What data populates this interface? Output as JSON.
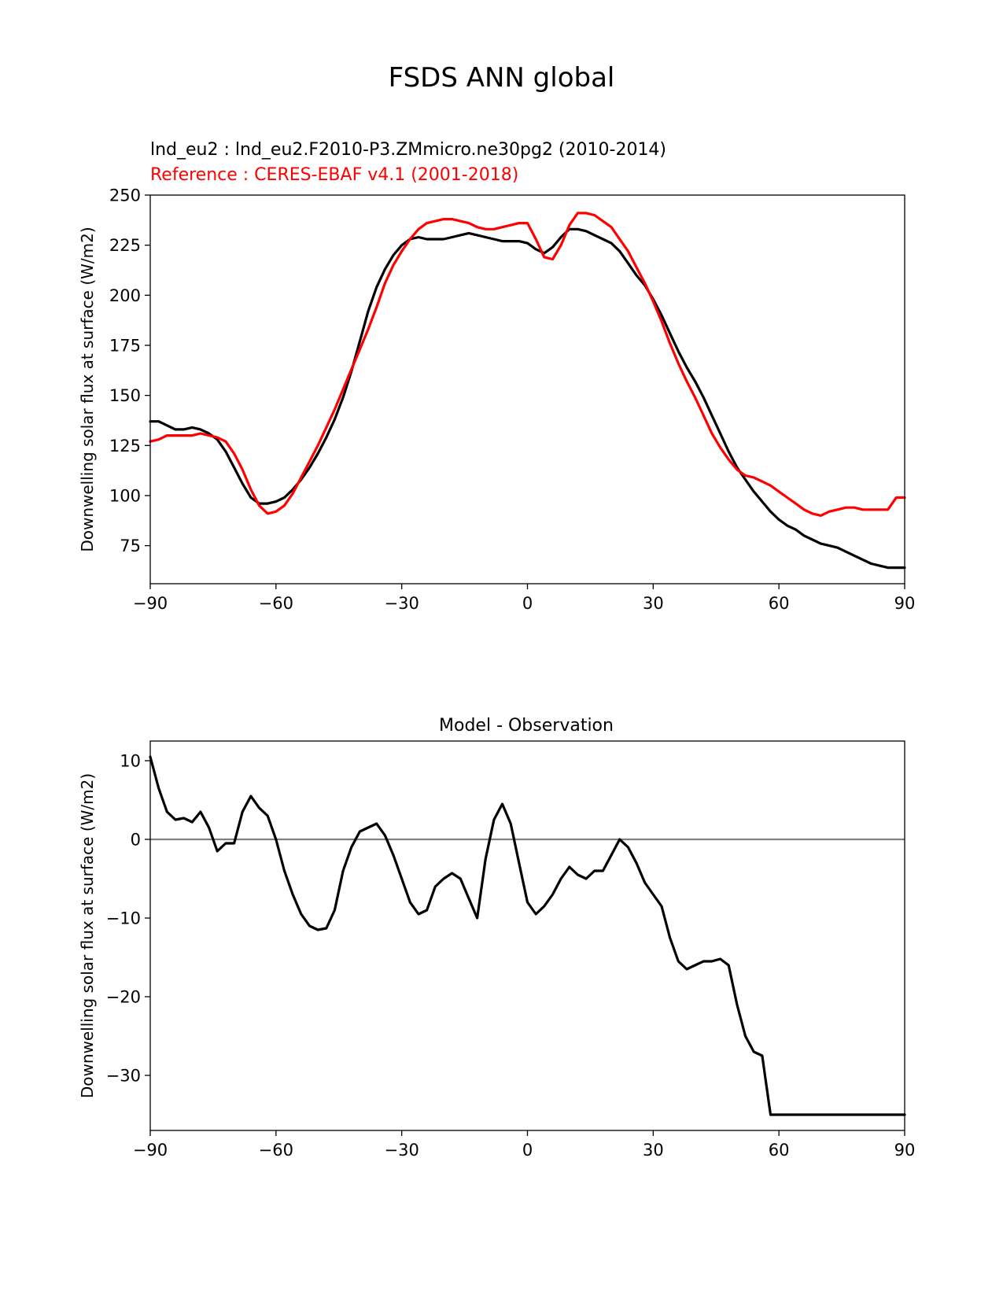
{
  "figure_title": "FSDS ANN global",
  "chart_data": [
    {
      "type": "line",
      "title": "",
      "legend": {
        "test": "lnd_eu2 : lnd_eu2.F2010-P3.ZMmicro.ne30pg2 (2010-2014)",
        "ref": "Reference : CERES-EBAF v4.1 (2001-2018)"
      },
      "xlabel": "",
      "ylabel": "Downwelling solar flux at surface (W/m2)",
      "xlim": [
        -90,
        90
      ],
      "ylim": [
        56,
        250
      ],
      "xticks": [
        -90,
        -60,
        -30,
        0,
        30,
        60,
        90
      ],
      "xtick_labels": [
        "−90",
        "−60",
        "−30",
        "0",
        "30",
        "60",
        "90"
      ],
      "yticks": [
        75,
        100,
        125,
        150,
        175,
        200,
        225,
        250
      ],
      "ytick_labels": [
        "75",
        "100",
        "125",
        "150",
        "175",
        "200",
        "225",
        "250"
      ],
      "series": [
        {
          "name": "test",
          "color": "#000000",
          "x": [
            -90,
            -88,
            -86,
            -84,
            -82,
            -80,
            -78,
            -76,
            -74,
            -72,
            -70,
            -68,
            -66,
            -64,
            -62,
            -60,
            -58,
            -56,
            -54,
            -52,
            -50,
            -48,
            -46,
            -44,
            -42,
            -40,
            -38,
            -36,
            -34,
            -32,
            -30,
            -28,
            -26,
            -24,
            -22,
            -20,
            -18,
            -16,
            -14,
            -12,
            -10,
            -8,
            -6,
            -4,
            -2,
            0,
            2,
            4,
            6,
            8,
            10,
            12,
            14,
            16,
            18,
            20,
            22,
            24,
            26,
            28,
            30,
            32,
            34,
            36,
            38,
            40,
            42,
            44,
            46,
            48,
            50,
            52,
            54,
            56,
            58,
            60,
            62,
            64,
            66,
            68,
            70,
            72,
            74,
            76,
            78,
            80,
            82,
            84,
            86,
            88,
            90
          ],
          "values": [
            137,
            137,
            135,
            133,
            133,
            134,
            133,
            131,
            128,
            122,
            114,
            106,
            99,
            96,
            96,
            97,
            99,
            103,
            108,
            114,
            121,
            129,
            138,
            149,
            162,
            177,
            192,
            204,
            213,
            220,
            225,
            228,
            229,
            228,
            228,
            228,
            229,
            230,
            231,
            230,
            229,
            228,
            227,
            227,
            227,
            226,
            223,
            221,
            224,
            229,
            233,
            233,
            232,
            230,
            228,
            226,
            222,
            216,
            210,
            205,
            198,
            190,
            181,
            172,
            164,
            157,
            149,
            140,
            131,
            122,
            114,
            108,
            102,
            97,
            92,
            88,
            85,
            83,
            80,
            78,
            76,
            75,
            74,
            72,
            70,
            68,
            66,
            65,
            64,
            64,
            64
          ]
        },
        {
          "name": "ref",
          "color": "#ff0000",
          "x": [
            -90,
            -88,
            -86,
            -84,
            -82,
            -80,
            -78,
            -76,
            -74,
            -72,
            -70,
            -68,
            -66,
            -64,
            -62,
            -60,
            -58,
            -56,
            -54,
            -52,
            -50,
            -48,
            -46,
            -44,
            -42,
            -40,
            -38,
            -36,
            -34,
            -32,
            -30,
            -28,
            -26,
            -24,
            -22,
            -20,
            -18,
            -16,
            -14,
            -12,
            -10,
            -8,
            -6,
            -4,
            -2,
            0,
            2,
            4,
            6,
            8,
            10,
            12,
            14,
            16,
            18,
            20,
            22,
            24,
            26,
            28,
            30,
            32,
            34,
            36,
            38,
            40,
            42,
            44,
            46,
            48,
            50,
            52,
            54,
            56,
            58,
            60,
            62,
            64,
            66,
            68,
            70,
            72,
            74,
            76,
            78,
            80,
            82,
            84,
            86,
            88,
            90
          ],
          "values": [
            127,
            128,
            130,
            130,
            130,
            130,
            131,
            130,
            129,
            127,
            121,
            113,
            103,
            95,
            91,
            92,
            95,
            101,
            109,
            117,
            125,
            134,
            143,
            153,
            163,
            173,
            183,
            194,
            206,
            215,
            222,
            228,
            233,
            236,
            237,
            238,
            238,
            237,
            236,
            234,
            233,
            233,
            234,
            235,
            236,
            236,
            228,
            219,
            218,
            225,
            235,
            241,
            241,
            240,
            237,
            234,
            228,
            222,
            214,
            206,
            197,
            187,
            176,
            166,
            157,
            149,
            140,
            131,
            124,
            118,
            113,
            110,
            109,
            107,
            105,
            102,
            99,
            96,
            93,
            91,
            90,
            92,
            93,
            94,
            94,
            93,
            93,
            93,
            93,
            99,
            99
          ]
        }
      ]
    },
    {
      "type": "line",
      "title": "Model - Observation",
      "xlabel": "",
      "ylabel": "Downwelling solar flux at surface (W/m2)",
      "xlim": [
        -90,
        90
      ],
      "ylim": [
        -37,
        12.5
      ],
      "xticks": [
        -90,
        -60,
        -30,
        0,
        30,
        60,
        90
      ],
      "xtick_labels": [
        "−90",
        "−60",
        "−30",
        "0",
        "30",
        "60",
        "90"
      ],
      "yticks": [
        -30,
        -20,
        -10,
        0,
        10
      ],
      "ytick_labels": [
        "−30",
        "−20",
        "−10",
        "0",
        "10"
      ],
      "zero_line_color": "#808080",
      "series": [
        {
          "name": "difference",
          "color": "#000000",
          "x": [
            -90,
            -88,
            -86,
            -84,
            -82,
            -80,
            -78,
            -76,
            -74,
            -72,
            -70,
            -68,
            -66,
            -64,
            -62,
            -60,
            -58,
            -56,
            -54,
            -52,
            -50,
            -48,
            -46,
            -44,
            -42,
            -40,
            -38,
            -36,
            -34,
            -32,
            -30,
            -28,
            -26,
            -24,
            -22,
            -20,
            -18,
            -16,
            -14,
            -12,
            -10,
            -8,
            -6,
            -4,
            -2,
            0,
            2,
            4,
            6,
            8,
            10,
            12,
            14,
            16,
            18,
            20,
            22,
            24,
            26,
            28,
            30,
            32,
            34,
            36,
            38,
            40,
            42,
            44,
            46,
            48,
            50,
            52,
            54,
            56,
            58,
            60,
            62,
            64,
            66,
            68,
            70,
            72,
            74,
            76,
            78,
            80,
            82,
            84,
            86,
            88,
            90
          ],
          "values": [
            10.5,
            6.5,
            3.5,
            2.5,
            2.7,
            2.2,
            3.5,
            1.5,
            -1.5,
            -0.5,
            -0.5,
            3.5,
            5.5,
            4.0,
            3.0,
            0.0,
            -4.0,
            -7.0,
            -9.5,
            -11.0,
            -11.5,
            -11.3,
            -9.0,
            -4.0,
            -1.0,
            1.0,
            1.5,
            2.0,
            0.5,
            -2.0,
            -5.0,
            -8.0,
            -9.5,
            -9.0,
            -6.0,
            -5.0,
            -4.3,
            -5.0,
            -7.5,
            -10.0,
            -2.5,
            2.5,
            4.5,
            2.0,
            -3.0,
            -8.0,
            -9.5,
            -8.5,
            -7.0,
            -5.0,
            -3.5,
            -4.5,
            -5.0,
            -4.0,
            -4.0,
            -2.0,
            0.0,
            -1.0,
            -3.0,
            -5.5,
            -7.0,
            -8.5,
            -12.5,
            -15.5,
            -16.5,
            -16.0,
            -15.5,
            -15.5,
            -15.2,
            -16.0,
            -21.0,
            -25.0,
            -27.0,
            -27.5,
            -35.0,
            -35.0,
            -35.0,
            -35.0,
            -35.0,
            -35.0,
            -35.0,
            -35.0,
            -35.0,
            -35.0,
            -35.0,
            -35.0,
            -35.0,
            -35.0,
            -35.0,
            -35.0,
            -35.0
          ]
        }
      ]
    }
  ]
}
